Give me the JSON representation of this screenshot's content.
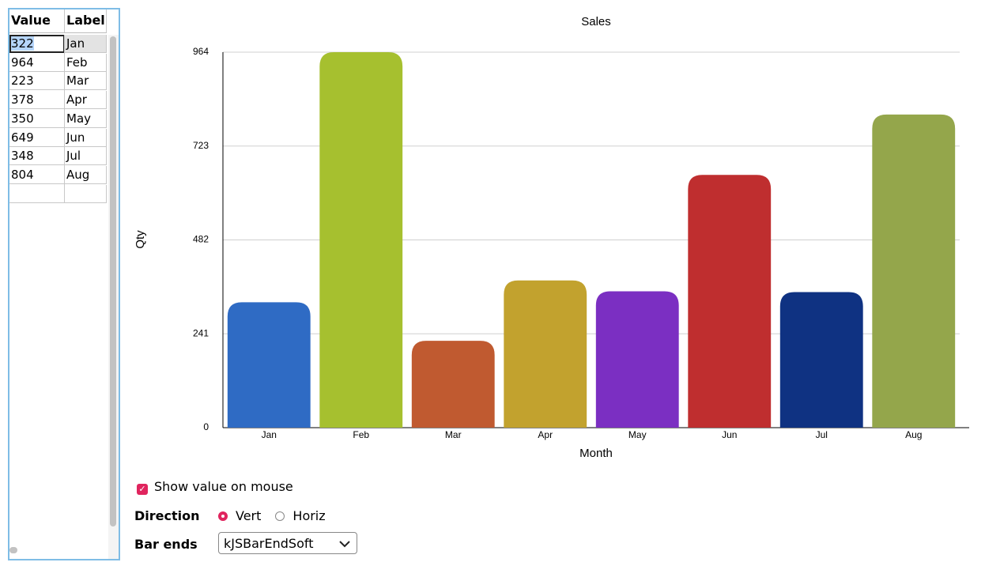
{
  "table": {
    "headers": [
      "Value",
      "Label"
    ]
  },
  "chart_data": {
    "type": "bar",
    "title": "Sales",
    "x_label": "Month",
    "y_label": "Qty",
    "categories": [
      "Jan",
      "Feb",
      "Mar",
      "Apr",
      "May",
      "Jun",
      "Jul",
      "Aug"
    ],
    "values": [
      322,
      964,
      223,
      378,
      350,
      649,
      348,
      804
    ],
    "colors": [
      "#2f6bc4",
      "#a6c02f",
      "#c05a30",
      "#c2a22e",
      "#7b2fc2",
      "#bf2e2f",
      "#0f3282",
      "#94a64b"
    ],
    "ylim": [
      0,
      964
    ],
    "yticks": [
      0,
      241,
      482,
      723,
      964
    ],
    "grid": true
  },
  "controls": {
    "show_value": {
      "label": "Show value on mouse",
      "checked": true
    },
    "direction": {
      "label": "Direction",
      "options": [
        "Vert",
        "Horiz"
      ],
      "selected": 0
    },
    "bar_ends": {
      "label": "Bar ends",
      "value": "kJSBarEndSoft"
    }
  }
}
